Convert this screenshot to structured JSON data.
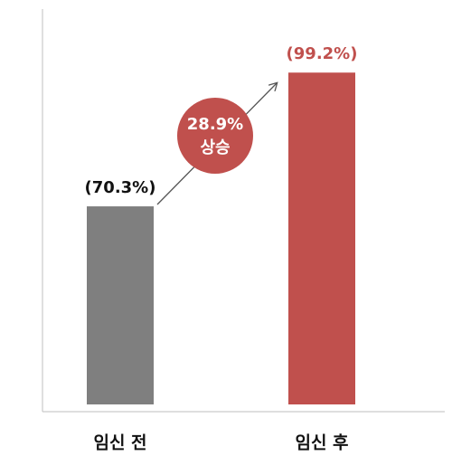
{
  "chart_data": {
    "type": "bar",
    "categories": [
      "임신 전",
      "임신 후"
    ],
    "values": [
      70.3,
      99.2
    ],
    "value_labels": [
      "(70.3%)",
      "(99.2%)"
    ],
    "colors": [
      "#7f7f7f",
      "#c0504d"
    ],
    "ylim": [
      27.5,
      110
    ],
    "annotation": [
      "28.9%",
      "상승"
    ]
  }
}
